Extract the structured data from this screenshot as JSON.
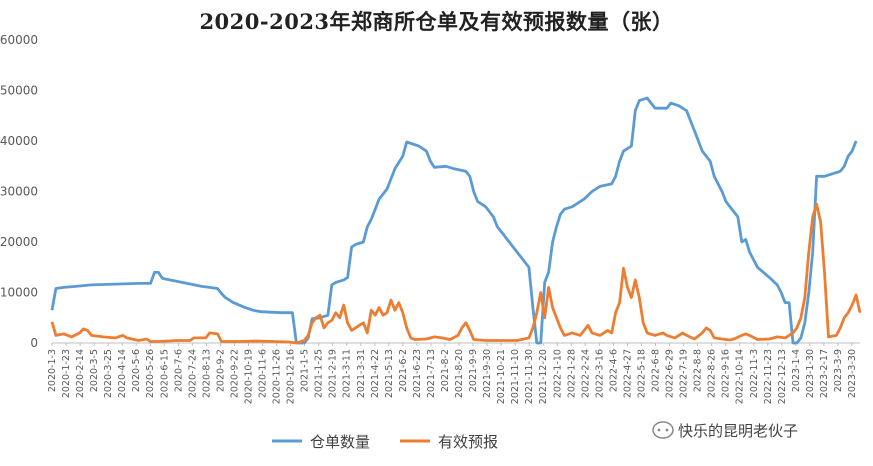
{
  "title": "2020-2023年郑商所仓单及有效预报数量（张）",
  "watermark": "快乐的昆明老伙子",
  "colors": {
    "warrant": "#5B9BD5",
    "forecast": "#ED7D31",
    "axis": "#bfbfbf"
  },
  "chart_data": {
    "type": "line",
    "ylim": [
      0,
      60000
    ],
    "yticks": [
      0,
      10000,
      20000,
      30000,
      40000,
      50000,
      60000
    ],
    "grid": false,
    "legend_position": "bottom",
    "x_labels": [
      "2020-1-3",
      "2020-1-23",
      "2020-2-14",
      "2020-3-5",
      "2020-3-25",
      "2020-4-14",
      "2020-5-6",
      "2020-5-26",
      "2020-6-15",
      "2020-7-6",
      "2020-7-24",
      "2020-8-13",
      "2020-9-2",
      "2020-9-22",
      "2020-10-19",
      "2020-11-6",
      "2020-11-26",
      "2020-12-16",
      "2021-1-5",
      "2021-1-25",
      "2021-2-19",
      "2021-3-11",
      "2021-3-31",
      "2021-4-22",
      "2021-5-13",
      "2021-6-2",
      "2021-6-23",
      "2021-7-13",
      "2021-8-2",
      "2021-8-20",
      "2021-9-9",
      "2021-9-30",
      "2021-10-21",
      "2021-11-10",
      "2021-11-30",
      "2021-12-20",
      "2022-1-10",
      "2022-1-28",
      "2022-2-24",
      "2022-3-16",
      "2022-4-6",
      "2022-4-27",
      "2022-5-18",
      "2022-6-8",
      "2022-6-29",
      "2022-7-19",
      "2022-8-8",
      "2022-8-26",
      "2022-9-16",
      "2022-10-14",
      "2022-11-3",
      "2022-11-23",
      "2022-12-13",
      "2023-1-4",
      "2023-1-30",
      "2023-2-17",
      "2023-3-9",
      "2023-3-30"
    ],
    "series": [
      {
        "name": "仓单数量",
        "points": [
          [
            0,
            6500
          ],
          [
            1,
            10800
          ],
          [
            3,
            11000
          ],
          [
            6,
            11200
          ],
          [
            10,
            11500
          ],
          [
            14,
            11600
          ],
          [
            18,
            11700
          ],
          [
            22,
            11800
          ],
          [
            25,
            11800
          ],
          [
            26,
            14000
          ],
          [
            27,
            14000
          ],
          [
            28,
            12800
          ],
          [
            33,
            12000
          ],
          [
            38,
            11200
          ],
          [
            40,
            11000
          ],
          [
            42,
            10800
          ],
          [
            43,
            9800
          ],
          [
            44,
            9000
          ],
          [
            46,
            8000
          ],
          [
            49,
            7000
          ],
          [
            51,
            6500
          ],
          [
            53,
            6200
          ],
          [
            58,
            6000
          ],
          [
            61,
            6000
          ],
          [
            62,
            0
          ],
          [
            64,
            0
          ],
          [
            65,
            1000
          ],
          [
            66,
            4800
          ],
          [
            68,
            5000
          ],
          [
            70,
            5500
          ],
          [
            71,
            11500
          ],
          [
            72,
            12000
          ],
          [
            74,
            12500
          ],
          [
            75,
            13000
          ],
          [
            76,
            19000
          ],
          [
            77,
            19500
          ],
          [
            79,
            20000
          ],
          [
            80,
            23000
          ],
          [
            81,
            24500
          ],
          [
            82,
            26500
          ],
          [
            83,
            28500
          ],
          [
            85,
            30500
          ],
          [
            86,
            32500
          ],
          [
            87,
            34500
          ],
          [
            89,
            37000
          ],
          [
            90,
            39800
          ],
          [
            93,
            39000
          ],
          [
            95,
            38000
          ],
          [
            96,
            36000
          ],
          [
            97,
            34800
          ],
          [
            100,
            35000
          ],
          [
            102,
            34500
          ],
          [
            105,
            34000
          ],
          [
            106,
            33000
          ],
          [
            107,
            30000
          ],
          [
            108,
            28000
          ],
          [
            110,
            27000
          ],
          [
            112,
            25000
          ],
          [
            113,
            23000
          ],
          [
            115,
            21000
          ],
          [
            117,
            19000
          ],
          [
            119,
            17000
          ],
          [
            121,
            15000
          ],
          [
            122,
            7000
          ],
          [
            123,
            0
          ],
          [
            124,
            0
          ],
          [
            125,
            12000
          ],
          [
            126,
            14000
          ],
          [
            127,
            20000
          ],
          [
            128,
            23000
          ],
          [
            129,
            25500
          ],
          [
            130,
            26500
          ],
          [
            132,
            27000
          ],
          [
            135,
            28500
          ],
          [
            137,
            30000
          ],
          [
            139,
            31000
          ],
          [
            142,
            31500
          ],
          [
            143,
            33000
          ],
          [
            144,
            36000
          ],
          [
            145,
            38000
          ],
          [
            147,
            39000
          ],
          [
            148,
            46000
          ],
          [
            149,
            48000
          ],
          [
            151,
            48500
          ],
          [
            152,
            47500
          ],
          [
            153,
            46500
          ],
          [
            156,
            46500
          ],
          [
            157,
            47500
          ],
          [
            159,
            47000
          ],
          [
            161,
            46000
          ],
          [
            163,
            42000
          ],
          [
            165,
            38000
          ],
          [
            167,
            36000
          ],
          [
            168,
            33000
          ],
          [
            170,
            30000
          ],
          [
            171,
            28000
          ],
          [
            172,
            27000
          ],
          [
            174,
            25000
          ],
          [
            175,
            20000
          ],
          [
            176,
            20500
          ],
          [
            177,
            18000
          ],
          [
            179,
            15000
          ],
          [
            182,
            13000
          ],
          [
            184,
            11500
          ],
          [
            185,
            10000
          ],
          [
            186,
            8000
          ],
          [
            187,
            8000
          ],
          [
            188,
            0
          ],
          [
            189,
            0
          ],
          [
            190,
            1000
          ],
          [
            191,
            4000
          ],
          [
            192,
            10000
          ],
          [
            193,
            18000
          ],
          [
            194,
            33000
          ],
          [
            196,
            33000
          ],
          [
            198,
            33500
          ],
          [
            200,
            34000
          ],
          [
            201,
            35000
          ],
          [
            202,
            37000
          ],
          [
            203,
            38000
          ],
          [
            204,
            40000
          ]
        ]
      },
      {
        "name": "有效预报",
        "points": [
          [
            0,
            4200
          ],
          [
            1,
            1500
          ],
          [
            3,
            1800
          ],
          [
            5,
            1200
          ],
          [
            7,
            2000
          ],
          [
            8,
            2800
          ],
          [
            9,
            2500
          ],
          [
            10,
            1500
          ],
          [
            13,
            1200
          ],
          [
            16,
            1000
          ],
          [
            18,
            1500
          ],
          [
            19,
            1000
          ],
          [
            22,
            500
          ],
          [
            24,
            800
          ],
          [
            25,
            300
          ],
          [
            27,
            300
          ],
          [
            32,
            500
          ],
          [
            35,
            500
          ],
          [
            36,
            1000
          ],
          [
            39,
            1000
          ],
          [
            40,
            2000
          ],
          [
            42,
            1800
          ],
          [
            43,
            300
          ],
          [
            48,
            300
          ],
          [
            52,
            400
          ],
          [
            56,
            300
          ],
          [
            60,
            200
          ],
          [
            62,
            0
          ],
          [
            64,
            500
          ],
          [
            65,
            1500
          ],
          [
            66,
            4000
          ],
          [
            67,
            5000
          ],
          [
            68,
            5500
          ],
          [
            69,
            3000
          ],
          [
            70,
            4000
          ],
          [
            71,
            4500
          ],
          [
            72,
            6000
          ],
          [
            73,
            5000
          ],
          [
            74,
            7500
          ],
          [
            75,
            4000
          ],
          [
            76,
            2500
          ],
          [
            78,
            3500
          ],
          [
            79,
            4000
          ],
          [
            80,
            2000
          ],
          [
            81,
            6500
          ],
          [
            82,
            5500
          ],
          [
            83,
            7000
          ],
          [
            84,
            5500
          ],
          [
            85,
            6000
          ],
          [
            86,
            8500
          ],
          [
            87,
            6500
          ],
          [
            88,
            8000
          ],
          [
            89,
            6000
          ],
          [
            90,
            3000
          ],
          [
            91,
            1000
          ],
          [
            92,
            700
          ],
          [
            95,
            800
          ],
          [
            97,
            1200
          ],
          [
            99,
            1000
          ],
          [
            101,
            700
          ],
          [
            103,
            1500
          ],
          [
            104,
            3000
          ],
          [
            105,
            4000
          ],
          [
            106,
            2500
          ],
          [
            107,
            700
          ],
          [
            110,
            500
          ],
          [
            114,
            500
          ],
          [
            118,
            500
          ],
          [
            121,
            1000
          ],
          [
            122,
            3000
          ],
          [
            123,
            6000
          ],
          [
            124,
            10000
          ],
          [
            125,
            5000
          ],
          [
            126,
            11000
          ],
          [
            127,
            7000
          ],
          [
            128,
            5000
          ],
          [
            129,
            3000
          ],
          [
            130,
            1500
          ],
          [
            132,
            2000
          ],
          [
            134,
            1500
          ],
          [
            135,
            2500
          ],
          [
            136,
            3500
          ],
          [
            137,
            2000
          ],
          [
            139,
            1500
          ],
          [
            141,
            2500
          ],
          [
            142,
            2000
          ],
          [
            143,
            6000
          ],
          [
            144,
            8000
          ],
          [
            145,
            14800
          ],
          [
            146,
            11000
          ],
          [
            147,
            9000
          ],
          [
            148,
            12500
          ],
          [
            149,
            9000
          ],
          [
            150,
            4000
          ],
          [
            151,
            2000
          ],
          [
            153,
            1500
          ],
          [
            155,
            2000
          ],
          [
            156,
            1500
          ],
          [
            158,
            1000
          ],
          [
            160,
            2000
          ],
          [
            161,
            1500
          ],
          [
            163,
            800
          ],
          [
            165,
            2000
          ],
          [
            166,
            3000
          ],
          [
            167,
            2500
          ],
          [
            168,
            1000
          ],
          [
            170,
            800
          ],
          [
            172,
            600
          ],
          [
            173,
            800
          ],
          [
            175,
            1500
          ],
          [
            176,
            1800
          ],
          [
            177,
            1500
          ],
          [
            179,
            700
          ],
          [
            182,
            800
          ],
          [
            184,
            1200
          ],
          [
            186,
            1000
          ],
          [
            187,
            1500
          ],
          [
            188,
            2000
          ],
          [
            189,
            3000
          ],
          [
            190,
            5000
          ],
          [
            191,
            9000
          ],
          [
            192,
            18000
          ],
          [
            193,
            25000
          ],
          [
            194,
            27500
          ],
          [
            195,
            24000
          ],
          [
            196,
            14000
          ],
          [
            197,
            1200
          ],
          [
            199,
            1500
          ],
          [
            200,
            3000
          ],
          [
            201,
            5000
          ],
          [
            202,
            6000
          ],
          [
            203,
            7500
          ],
          [
            204,
            9500
          ],
          [
            205,
            6000
          ]
        ]
      }
    ]
  }
}
